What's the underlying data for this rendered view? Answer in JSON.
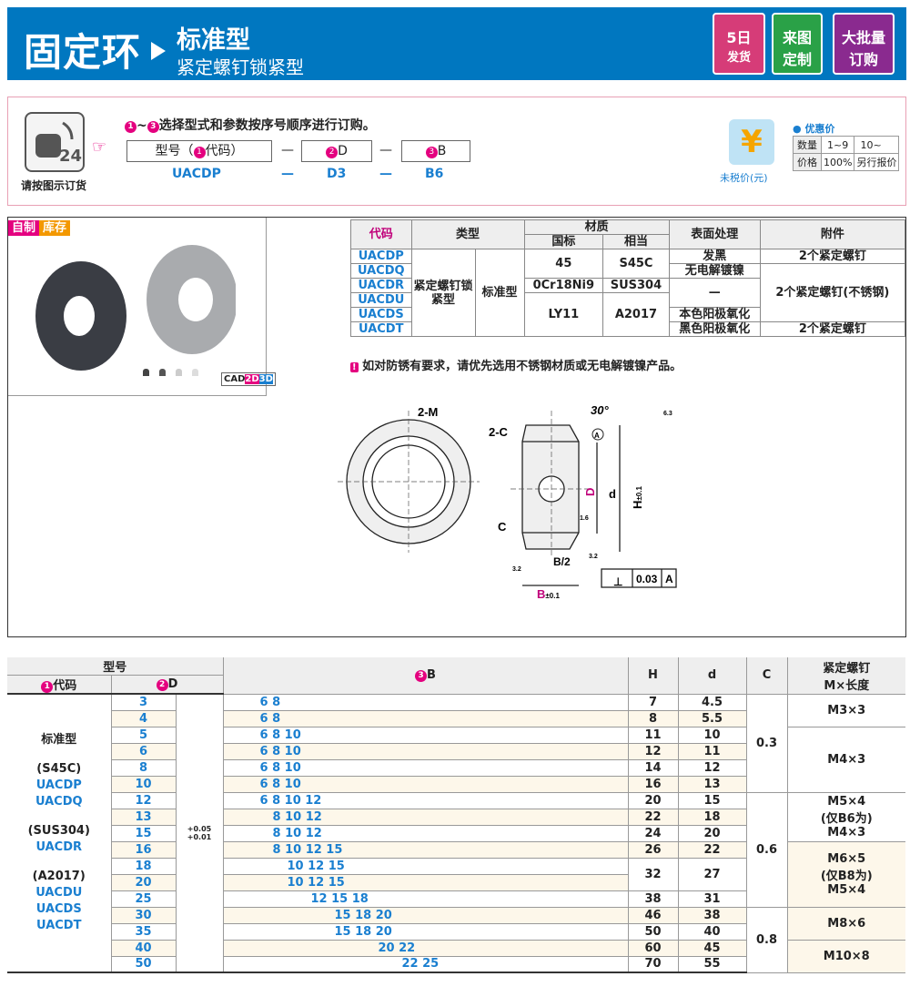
{
  "header": {
    "title": "固定环",
    "subtitle": "标准型",
    "subtitle2": "紧定螺钉锁紧型",
    "badges": [
      {
        "line1": "5日",
        "line2": "发货",
        "color": "#d63c78"
      },
      {
        "line1": "来图",
        "line2": "定制",
        "color": "#2aa147"
      },
      {
        "line1": "大批量",
        "line2": "订购",
        "color": "#8a2a8f"
      }
    ]
  },
  "order": {
    "icon_caption": "请按图示订货",
    "instruction": "选择型式和参数按序号顺序进行订购。",
    "step_range": [
      "1",
      "3"
    ],
    "fields": [
      {
        "num": "1",
        "label": "代码",
        "prefix": "型号（",
        "suffix": "）"
      },
      {
        "num": "2",
        "label": "D"
      },
      {
        "num": "3",
        "label": "B"
      }
    ],
    "dash": "—",
    "example": [
      "UACDP",
      "D3",
      "B6"
    ],
    "price": {
      "yen": "¥",
      "caption": "未税价(元)",
      "title": "优惠价",
      "rows": [
        [
          "数量",
          "1~9",
          "10~"
        ],
        [
          "价格",
          "100%",
          "另行报价"
        ]
      ]
    }
  },
  "product": {
    "tags": [
      "自制",
      "库存"
    ],
    "cad": "CAD",
    "cad2": "2D",
    "cad3": "3D",
    "spec": {
      "headers": {
        "code": "代码",
        "type": "类型",
        "material": "材质",
        "gb": "国标",
        "equiv": "相当",
        "surface": "表面处理",
        "accessory": "附件"
      },
      "codes": [
        "UACDP",
        "UACDQ",
        "UACDR",
        "UACDU",
        "UACDS",
        "UACDT"
      ],
      "type1": "紧定螺钉锁紧型",
      "type2": "标准型",
      "gb": [
        "45",
        "0Cr18Ni9",
        "LY11"
      ],
      "equiv": [
        "S45C",
        "SUS304",
        "A2017"
      ],
      "surface": [
        "发黑",
        "无电解镀镍",
        "—",
        "本色阳极氧化",
        "黑色阳极氧化"
      ],
      "accessory": [
        "2个紧定螺钉",
        "2个紧定螺钉(不锈钢)",
        "2个紧定螺钉"
      ]
    },
    "note": "如对防锈有要求，请优先选用不锈钢材质或无电解镀镍产品。",
    "drawing": {
      "m": "2-M",
      "c2": "2-C",
      "c": "C",
      "angle": "30°",
      "D": "D",
      "d": "d",
      "H": "H",
      "Htol": "±0.1",
      "B": "B",
      "Btol": "±0.1",
      "B2": "B/2",
      "r63": "6.3",
      "r16": "1.6",
      "r32": "3.2",
      "datum": "A",
      "perp": "0.03"
    }
  },
  "table": {
    "headers": {
      "model": "型号",
      "code": "代码",
      "D": "D",
      "B": "B",
      "H": "H",
      "d": "d",
      "C": "C",
      "screw": "紧定螺钉",
      "screw2": "M×长度"
    },
    "left": [
      "标准型",
      "(S45C)",
      "UACDP",
      "UACDQ",
      "(SUS304)",
      "UACDR",
      "(A2017)",
      "UACDU",
      "UACDS",
      "UACDT"
    ],
    "tol": [
      "+0.05",
      "+0.01"
    ],
    "rows": [
      {
        "D": "3",
        "B": "6 8",
        "H": "7",
        "d": "4.5"
      },
      {
        "D": "4",
        "B": "6 8",
        "H": "8",
        "d": "5.5"
      },
      {
        "D": "5",
        "B": "6 8 10",
        "H": "11",
        "d": "10"
      },
      {
        "D": "6",
        "B": "6 8 10",
        "H": "12",
        "d": "11"
      },
      {
        "D": "8",
        "B": "6 8 10",
        "H": "14",
        "d": "12"
      },
      {
        "D": "10",
        "B": "6 8 10",
        "H": "16",
        "d": "13"
      },
      {
        "D": "12",
        "B": "6 8 10 12",
        "H": "20",
        "d": "15"
      },
      {
        "D": "13",
        "B": "8 10 12",
        "H": "22",
        "d": "18"
      },
      {
        "D": "15",
        "B": "8 10 12",
        "H": "24",
        "d": "20"
      },
      {
        "D": "16",
        "B": "8 10 12 15",
        "H": "26",
        "d": "22"
      },
      {
        "D": "18",
        "B": "10 12 15",
        "H": "32",
        "d": "27"
      },
      {
        "D": "20",
        "B": "10 12 15"
      },
      {
        "D": "25",
        "B": "12 15 18",
        "H": "38",
        "d": "31"
      },
      {
        "D": "30",
        "B": "15 18 20",
        "H": "46",
        "d": "38"
      },
      {
        "D": "35",
        "B": "15 18 20",
        "H": "50",
        "d": "40"
      },
      {
        "D": "40",
        "B": "20 22",
        "H": "60",
        "d": "45"
      },
      {
        "D": "50",
        "B": "22 25",
        "H": "70",
        "d": "55"
      }
    ],
    "C": [
      {
        "v": "0.3",
        "span": 6
      },
      {
        "v": "0.6",
        "span": 7
      },
      {
        "v": "0.8",
        "span": 4
      }
    ],
    "screw": [
      {
        "v": [
          "M3×3"
        ],
        "span": 2
      },
      {
        "v": [
          "M4×3"
        ],
        "span": 4
      },
      {
        "v": [
          "M5×4",
          "(仅B6为)",
          "M4×3"
        ],
        "span": 3
      },
      {
        "v": [
          "M6×5",
          "(仅B8为)",
          "M5×4"
        ],
        "span": 4
      },
      {
        "v": [
          "M8×6"
        ],
        "span": 2
      },
      {
        "v": [
          "M10×8"
        ],
        "span": 2
      }
    ]
  }
}
